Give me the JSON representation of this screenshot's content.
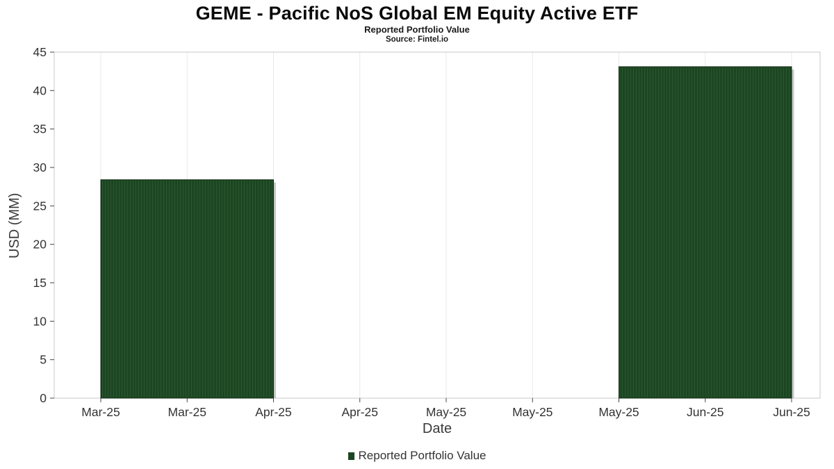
{
  "chart_data": {
    "type": "bar",
    "title": "GEME - Pacific NoS Global EM Equity Active ETF",
    "subtitle": "Reported Portfolio Value",
    "source": "Source: Fintel.io",
    "xlabel": "Date",
    "ylabel": "USD (MM)",
    "ylim": [
      0,
      45
    ],
    "ytick_step": 5,
    "ytick_labels": [
      "0",
      "5",
      "10",
      "15",
      "20",
      "25",
      "30",
      "35",
      "40",
      "45"
    ],
    "x_tick_labels": [
      "Mar-25",
      "Mar-25",
      "Apr-25",
      "Apr-25",
      "May-25",
      "May-25",
      "May-25",
      "Jun-25",
      "Jun-25"
    ],
    "grid": "vertical-faint",
    "legend_position": "bottom-center",
    "colors": {
      "bar_fill": "#1c4621",
      "bar_stripe": "#2a5630",
      "bar_edge": "#102a14",
      "bar_shadow": "#9a9a9a",
      "grid_line": "#e8e8e8",
      "plot_border": "#c8c8c8",
      "tick_mark": "#444444",
      "tick_text": "#333333"
    },
    "series": [
      {
        "name": "Reported Portfolio Value",
        "color": "#1c4621",
        "bars": [
          {
            "center_tick_index": 1,
            "span_ticks": 2,
            "value": 28.4
          },
          {
            "center_tick_index": 7,
            "span_ticks": 2,
            "value": 43.1
          }
        ]
      }
    ]
  },
  "legend": {
    "label": "Reported Portfolio Value"
  }
}
